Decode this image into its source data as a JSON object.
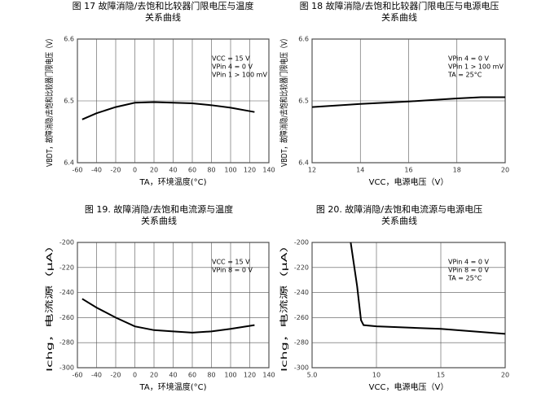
{
  "chart_data": [
    {
      "type": "line",
      "title": [
        "图 17 故障消隐/去饱和比较器门限电压与温度",
        "关系曲线"
      ],
      "x_label": "TA，环境温度(°C)",
      "y_label": "VBDT，故障消隐/去饱和比较器门限电压（V）",
      "annotations": [
        "VCC = 15 V",
        "VPin 4 = 0 V",
        "VPin 1 > 100 mV"
      ],
      "x": [
        -55,
        -40,
        -20,
        0,
        20,
        40,
        60,
        80,
        100,
        125
      ],
      "values": [
        6.47,
        6.48,
        6.49,
        6.497,
        6.498,
        6.497,
        6.496,
        6.493,
        6.489,
        6.482
      ],
      "color": "#000000",
      "xlim": [
        -60,
        140
      ],
      "xticks": [
        -60,
        -40,
        -20,
        0,
        20,
        40,
        60,
        80,
        100,
        120,
        140
      ],
      "ylim": [
        6.4,
        6.6
      ],
      "yticks": [
        6.4,
        6.5,
        6.6
      ],
      "grid": true
    },
    {
      "type": "line",
      "title": [
        "图 18 故障消隐/去饱和比较器门限电压与电源电压",
        "关系曲线"
      ],
      "x_label": "VCC，电源电压（V）",
      "y_label": "VBDT，故障消隐/去饱和比较器门限电压（V）",
      "annotations": [
        "VPin 4 = 0 V",
        "VPin 1 > 100 mV",
        "TA = 25°C"
      ],
      "x": [
        12,
        14,
        16,
        18,
        19,
        20
      ],
      "values": [
        6.49,
        6.495,
        6.499,
        6.504,
        6.506,
        6.506
      ],
      "color": "#000000",
      "xlim": [
        12,
        20
      ],
      "xticks": [
        12,
        14,
        16,
        18,
        20
      ],
      "ylim": [
        6.4,
        6.6
      ],
      "yticks": [
        6.4,
        6.5,
        6.6
      ],
      "grid": true
    },
    {
      "type": "line",
      "title": [
        "图 19. 故障消隐/去饱和电流源与温度",
        "关系曲线"
      ],
      "x_label": "TA，环境温度(°C)",
      "y_label": "Ichg，电流源（μA）",
      "annotations": [
        "VCC = 15 V",
        "VPin 8 = 0 V"
      ],
      "x": [
        -55,
        -40,
        -20,
        0,
        20,
        40,
        60,
        80,
        100,
        125
      ],
      "values": [
        -245,
        -252,
        -260,
        -267,
        -270,
        -271,
        -272,
        -271,
        -269,
        -266
      ],
      "color": "#000000",
      "xlim": [
        -60,
        140
      ],
      "xticks": [
        -60,
        -40,
        -20,
        0,
        20,
        40,
        60,
        80,
        100,
        120,
        140
      ],
      "ylim": [
        -300,
        -200
      ],
      "yticks": [
        -300,
        -280,
        -260,
        -240,
        -220,
        -200
      ],
      "grid": true
    },
    {
      "type": "line",
      "title": [
        "图 20. 故障消隐/去饱和电流源与电源电压",
        "关系曲线"
      ],
      "x_label": "VCC，电源电压（V）",
      "y_label": "Ichg，电流源（μA）",
      "annotations": [
        "VPin 4 = 0 V",
        "VPin 8 = 0 V",
        "TA = 25°C"
      ],
      "x": [
        8,
        8.5,
        8.8,
        9,
        10,
        15,
        20
      ],
      "values": [
        -200,
        -235,
        -262,
        -266,
        -267,
        -269,
        -273
      ],
      "color": "#000000",
      "xlim": [
        5,
        20
      ],
      "xticks": [
        {
          "value": 5,
          "label": "5.0"
        },
        10,
        15,
        20
      ],
      "ylim": [
        -300,
        -200
      ],
      "yticks": [
        -300,
        -280,
        -260,
        -240,
        -220,
        -200
      ],
      "grid": true
    }
  ]
}
